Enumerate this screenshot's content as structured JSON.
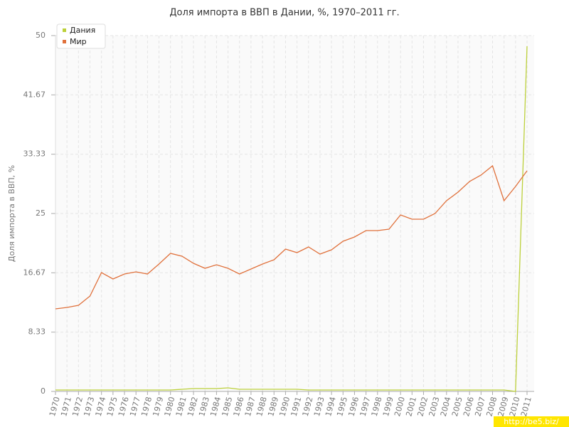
{
  "chart_data": {
    "type": "line",
    "title": "Доля импорта в ВВП в Дании, %, 1970–2011 гг.",
    "y_label": "Доля импорта в ВВП, %",
    "categories": [
      "1970",
      "1971",
      "1972",
      "1973",
      "1974",
      "1975",
      "1976",
      "1977",
      "1978",
      "1979",
      "1980",
      "1981",
      "1982",
      "1983",
      "1984",
      "1985",
      "1986",
      "1987",
      "1988",
      "1989",
      "1990",
      "1991",
      "1992",
      "1993",
      "1994",
      "1995",
      "1996",
      "1997",
      "1998",
      "1999",
      "2000",
      "2001",
      "2002",
      "2003",
      "2004",
      "2005",
      "2006",
      "2007",
      "2008",
      "2009",
      "2010",
      "2011"
    ],
    "series": [
      {
        "name": "Дания",
        "color": "#bcd03a",
        "values": [
          0.2,
          0.2,
          0.2,
          0.2,
          0.2,
          0.2,
          0.2,
          0.2,
          0.2,
          0.2,
          0.2,
          0.3,
          0.4,
          0.4,
          0.4,
          0.5,
          0.3,
          0.3,
          0.3,
          0.3,
          0.3,
          0.3,
          0.2,
          0.2,
          0.2,
          0.2,
          0.2,
          0.2,
          0.2,
          0.2,
          0.2,
          0.2,
          0.2,
          0.2,
          0.2,
          0.2,
          0.2,
          0.2,
          0.2,
          0.2,
          0,
          48.5
        ]
      },
      {
        "name": "Мир",
        "color": "#e0713c",
        "values": [
          11.6,
          11.8,
          12.1,
          13.4,
          16.7,
          15.8,
          16.5,
          16.8,
          16.5,
          17.9,
          19.4,
          19.0,
          18.0,
          17.3,
          17.8,
          17.3,
          16.5,
          17.2,
          17.9,
          18.5,
          20.0,
          19.5,
          20.3,
          19.3,
          19.9,
          21.1,
          21.7,
          22.6,
          22.6,
          22.8,
          24.8,
          24.2,
          24.2,
          25.0,
          26.8,
          28.0,
          29.5,
          30.4,
          31.7,
          26.8,
          28.8,
          31.0
        ]
      }
    ],
    "ylim": [
      0,
      50
    ],
    "yticks": [
      0,
      8.33,
      16.67,
      25,
      33.33,
      41.67,
      50
    ],
    "grid": true,
    "legend": "top-left",
    "watermark": "http://be5.biz/"
  }
}
